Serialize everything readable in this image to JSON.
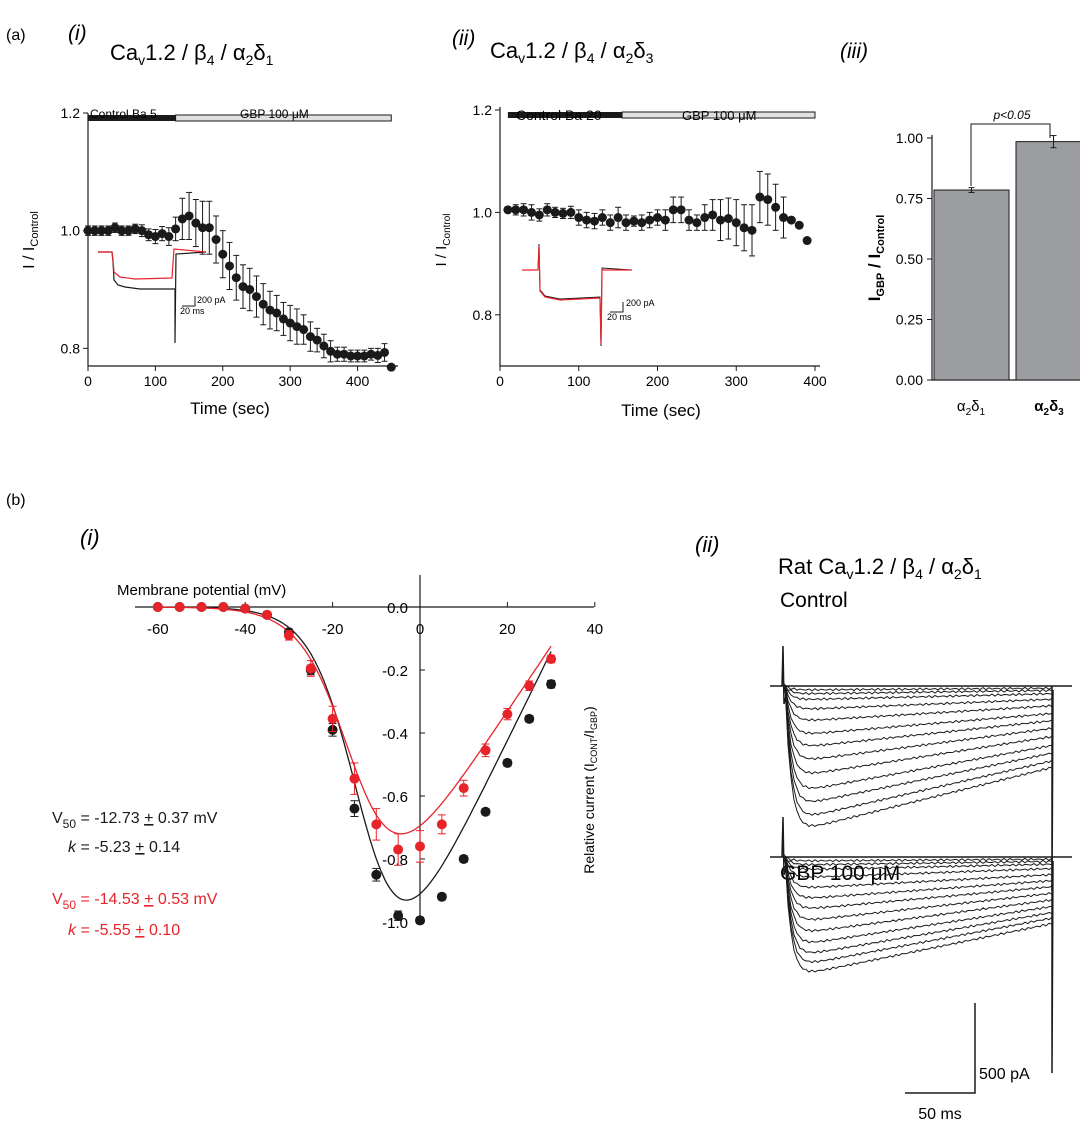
{
  "panels": {
    "a": "(a)",
    "b": "(b)",
    "ai": "(i)",
    "aii": "(ii)",
    "aiii": "(iii)",
    "bi": "(i)",
    "bii": "(ii)"
  },
  "colors": {
    "control": "#1a1a1a",
    "gbp": "#e8242b",
    "bar_fill": "#9b9da1",
    "bar_stroke": "#1a1a1a"
  },
  "headers": {
    "ai": {
      "pre": "Ca",
      "sub1": "v",
      "mid": "1.2 / β",
      "sub2": "4",
      "mid2": " / α",
      "sub3": "2",
      "post": "δ",
      "sub4": "1"
    },
    "aii": {
      "pre": "Ca",
      "sub1": "v",
      "mid": "1.2 / β",
      "sub2": "4",
      "mid2": " / α",
      "sub3": "2",
      "post": "δ",
      "sub4": "3"
    },
    "bii": {
      "pre": "Rat Ca",
      "sub1": "v",
      "mid": "1.2 / β",
      "sub2": "4",
      "mid2": " / α",
      "sub3": "2",
      "post": "δ",
      "sub4": "1"
    }
  },
  "timecourse": {
    "xlabel": "Time (sec)",
    "ylabel": {
      "main": "I / I",
      "sub": "Control"
    },
    "scalebar": {
      "current": "200 pA",
      "time": "20 ms"
    }
  },
  "labels": {
    "ai_control": "Control  Ba 5",
    "ai_gbp": "GBP 100 μM",
    "aii_control": "Control  Ba 20",
    "aii_gbp": "GBP 100 μM",
    "bar_sig": "p<0.05",
    "bar_ylabel": {
      "i": "I",
      "sub1": "GBP",
      "mid": " / I",
      "sub2": "Control"
    },
    "bar_cat1": {
      "a": "α",
      "s1": "2",
      "d": "δ",
      "s2": "1"
    },
    "bar_cat2": {
      "a": "α",
      "s1": "2",
      "d": "δ",
      "s2": "3"
    },
    "iv_xlabel": "Membrane potential (mV)",
    "iv_ylabel": {
      "main": "Relative current (I",
      "sub1": "CONT",
      "mid": "/I",
      "sub2": "GBP",
      "end": ")"
    },
    "fit_black_v": {
      "v": "V",
      "sub": "50",
      "rest": " = -12.73 ",
      "pm": "+",
      "rest2": " 0.37  mV"
    },
    "fit_black_k": {
      "k": "k",
      "rest": " =  -5.23 ",
      "pm": "+",
      "rest2": " 0.14"
    },
    "fit_red_v": {
      "v": "V",
      "sub": "50",
      "rest": " = -14.53 ",
      "pm": "+",
      "rest2": " 0.53  mV"
    },
    "fit_red_k": {
      "k": "k",
      "rest": " = -5.55 ",
      "pm": "+",
      "rest2": " 0.10"
    },
    "trace_control": "Control",
    "trace_gbp": "GBP 100 μM",
    "trace_scale_current": "500 pA",
    "trace_scale_time": "50 ms"
  },
  "chart_data": [
    {
      "id": "a_i_timecourse",
      "type": "scatter",
      "xlabel": "Time (sec)",
      "ylabel": "I / I_Control",
      "xlim": [
        0,
        460
      ],
      "ylim": [
        0.77,
        1.2
      ],
      "xticks": [
        0,
        100,
        200,
        300,
        400
      ],
      "yticks": [
        0.8,
        1.0,
        1.2
      ],
      "x": [
        0,
        10,
        20,
        30,
        40,
        50,
        60,
        70,
        80,
        90,
        100,
        110,
        120,
        130,
        140,
        150,
        160,
        170,
        180,
        190,
        200,
        210,
        220,
        230,
        240,
        250,
        260,
        270,
        280,
        290,
        300,
        310,
        320,
        330,
        340,
        350,
        360,
        370,
        380,
        390,
        400,
        410,
        420,
        430,
        440,
        450
      ],
      "y": [
        1.0,
        1.0,
        1.0,
        1.0,
        1.005,
        1.0,
        1.0,
        1.003,
        1.0,
        0.993,
        0.99,
        0.995,
        0.99,
        1.003,
        1.02,
        1.025,
        1.013,
        1.005,
        1.005,
        0.985,
        0.96,
        0.94,
        0.92,
        0.905,
        0.9,
        0.888,
        0.875,
        0.865,
        0.86,
        0.85,
        0.843,
        0.837,
        0.832,
        0.82,
        0.814,
        0.804,
        0.795,
        0.79,
        0.79,
        0.787,
        0.787,
        0.787,
        0.79,
        0.788,
        0.793,
        0.768
      ],
      "err": [
        0.008,
        0.008,
        0.008,
        0.008,
        0.008,
        0.008,
        0.008,
        0.008,
        0.01,
        0.01,
        0.012,
        0.012,
        0.015,
        0.02,
        0.035,
        0.04,
        0.04,
        0.045,
        0.045,
        0.04,
        0.04,
        0.04,
        0.038,
        0.037,
        0.036,
        0.035,
        0.035,
        0.032,
        0.03,
        0.028,
        0.03,
        0.03,
        0.025,
        0.025,
        0.02,
        0.02,
        0.018,
        0.012,
        0.012,
        0.01,
        0.01,
        0.01,
        0.01,
        0.012,
        0.015,
        0.0
      ],
      "bars": [
        {
          "label": "Control  Ba 5",
          "start": 0,
          "end": 130
        },
        {
          "label": "GBP 100 μM",
          "start": 130,
          "end": 450
        }
      ]
    },
    {
      "id": "a_ii_timecourse",
      "type": "scatter",
      "xlabel": "Time (sec)",
      "ylabel": "I / I_Control",
      "xlim": [
        0,
        400
      ],
      "ylim": [
        0.7,
        1.2
      ],
      "xticks": [
        0,
        100,
        200,
        300,
        400
      ],
      "yticks": [
        0.8,
        1.0,
        1.2
      ],
      "x": [
        10,
        20,
        30,
        40,
        50,
        60,
        70,
        80,
        90,
        100,
        110,
        120,
        130,
        140,
        150,
        160,
        170,
        180,
        190,
        200,
        210,
        220,
        230,
        240,
        250,
        260,
        270,
        280,
        290,
        300,
        310,
        320,
        330,
        340,
        350,
        360,
        370,
        380,
        390
      ],
      "y": [
        1.005,
        1.005,
        1.005,
        1.0,
        0.995,
        1.005,
        1.0,
        0.998,
        1.0,
        0.99,
        0.985,
        0.983,
        0.99,
        0.98,
        0.99,
        0.98,
        0.983,
        0.98,
        0.985,
        0.99,
        0.985,
        1.005,
        1.005,
        0.985,
        0.98,
        0.99,
        0.995,
        0.985,
        0.988,
        0.98,
        0.97,
        0.965,
        1.03,
        1.025,
        1.01,
        0.99,
        0.985,
        0.975,
        0.945
      ],
      "err": [
        0.005,
        0.01,
        0.012,
        0.015,
        0.012,
        0.012,
        0.01,
        0.01,
        0.012,
        0.015,
        0.015,
        0.015,
        0.015,
        0.015,
        0.02,
        0.015,
        0.01,
        0.015,
        0.015,
        0.015,
        0.02,
        0.025,
        0.025,
        0.02,
        0.015,
        0.025,
        0.03,
        0.04,
        0.04,
        0.045,
        0.045,
        0.05,
        0.05,
        0.05,
        0.045,
        0.04,
        0.0,
        0.0,
        0.0
      ],
      "bars": [
        {
          "label": "Control  Ba 20",
          "start": 10,
          "end": 155
        },
        {
          "label": "GBP 100 μM",
          "start": 155,
          "end": 400
        }
      ]
    },
    {
      "id": "a_iii_bar",
      "type": "bar",
      "categories": [
        "α2δ1",
        "α2δ3"
      ],
      "values": [
        0.785,
        0.985
      ],
      "err": [
        0.01,
        0.025
      ],
      "ylim": [
        0,
        1.0
      ],
      "yticks": [
        0.0,
        0.25,
        0.5,
        0.75,
        1.0
      ],
      "ylabel": "I_GBP / I_Control",
      "annotation": "p<0.05"
    },
    {
      "id": "b_i_iv",
      "type": "scatter",
      "xlabel": "Membrane potential (mV)",
      "ylabel": "Relative current (I_CONT/I_GBP)",
      "xlim": [
        -60,
        40
      ],
      "ylim": [
        -1.0,
        0.0
      ],
      "xticks": [
        -60,
        -40,
        -20,
        0,
        20,
        40
      ],
      "yticks": [
        0.0,
        -0.2,
        -0.4,
        -0.6,
        -0.8,
        -1.0
      ],
      "series": [
        {
          "x": [
            -60,
            -55,
            -50,
            -45,
            -40,
            -35,
            -30,
            -25,
            -20,
            -15,
            -10,
            -5,
            0,
            5,
            10,
            15,
            20,
            25,
            30
          ],
          "y": [
            0.0,
            0.0,
            0.0,
            0.0,
            -0.005,
            -0.025,
            -0.08,
            -0.2,
            -0.39,
            -0.64,
            -0.85,
            -0.98,
            -0.995,
            -0.92,
            -0.8,
            -0.65,
            -0.495,
            -0.355,
            -0.245
          ],
          "err": [
            0.005,
            0.005,
            0.005,
            0.005,
            0.005,
            0.005,
            0.01,
            0.015,
            0.02,
            0.025,
            0.02,
            0.015,
            0.01,
            0.01,
            0.01,
            0.01,
            0.01,
            0.01,
            0.012
          ],
          "fit": {
            "v50": -12.73,
            "k": -5.23,
            "g": 0.0283,
            "erev": 35
          }
        },
        {
          "x": [
            -60,
            -55,
            -50,
            -45,
            -40,
            -35,
            -30,
            -25,
            -20,
            -15,
            -10,
            -5,
            0,
            5,
            10,
            15,
            20,
            25,
            30
          ],
          "y": [
            0.0,
            0.0,
            0.0,
            0.0,
            -0.005,
            -0.025,
            -0.09,
            -0.195,
            -0.355,
            -0.545,
            -0.69,
            -0.77,
            -0.76,
            -0.69,
            -0.575,
            -0.455,
            -0.34,
            -0.25,
            -0.165
          ],
          "err": [
            0.005,
            0.005,
            0.005,
            0.005,
            0.005,
            0.01,
            0.015,
            0.025,
            0.04,
            0.05,
            0.05,
            0.05,
            0.05,
            0.03,
            0.025,
            0.02,
            0.018,
            0.015,
            0.012
          ],
          "fit": {
            "v50": -14.53,
            "k": -5.55,
            "g": 0.0207,
            "erev": 36
          }
        }
      ]
    }
  ]
}
